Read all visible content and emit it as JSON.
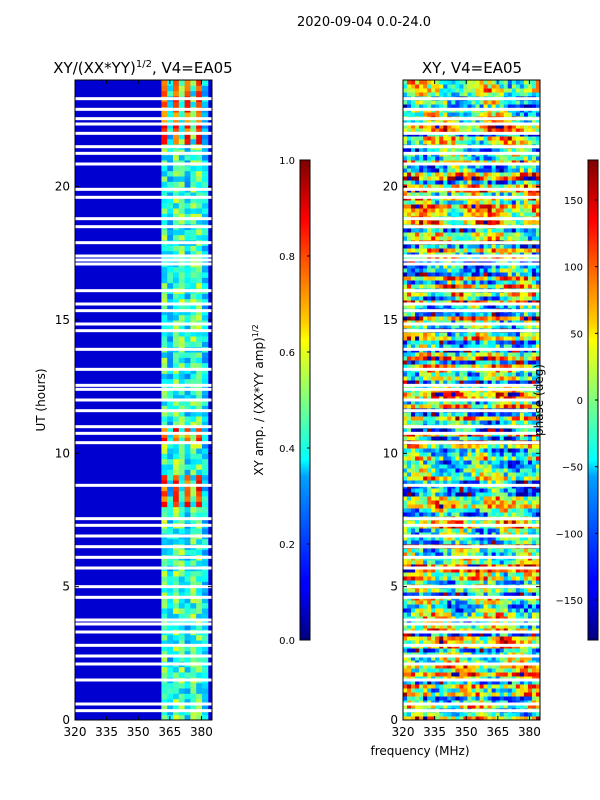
{
  "figure": {
    "suptitle": "2020-09-04 0.0-24.0",
    "xlabel_shared": "frequency (MHz)"
  },
  "chart_data": [
    {
      "type": "heatmap",
      "title": "XY/(XX*YY)",
      "title_exponent": "1/2",
      "title_suffix": ", V4=EA05",
      "xlabel": "frequency (MHz)",
      "ylabel": "UT (hours)",
      "xlim": [
        320,
        385
      ],
      "ylim": [
        0,
        24
      ],
      "xticks": [
        320,
        335,
        350,
        365,
        380
      ],
      "yticks": [
        0,
        5,
        10,
        15,
        20
      ],
      "colorbar": {
        "label": "XY amp. / (XX*YY amp)",
        "label_exponent": "1/2",
        "range": [
          0.0,
          1.0
        ],
        "ticks": [
          "0.0",
          "0.2",
          "0.4",
          "0.6",
          "0.8",
          "1.0"
        ],
        "colormap": "jet"
      },
      "description_values": {
        "background_level": 0.05,
        "band_freq_range_mhz": [
          361,
          383
        ],
        "band_level": 0.45,
        "hot_bands_level": 0.9
      }
    },
    {
      "type": "heatmap",
      "title": "XY",
      "title_exponent": "",
      "title_suffix": ", V4=EA05",
      "xlabel": "frequency (MHz)",
      "ylabel": "",
      "xlim": [
        320,
        385
      ],
      "ylim": [
        0,
        24
      ],
      "xticks": [
        320,
        335,
        350,
        365,
        380
      ],
      "yticks": [
        0,
        5,
        10,
        15,
        20
      ],
      "colorbar": {
        "label": "phase (deg)",
        "label_exponent": "",
        "range": [
          -180,
          180
        ],
        "ticks": [
          "−150",
          "−100",
          "−50",
          "0",
          "50",
          "100",
          "150"
        ],
        "tick_values": [
          -150,
          -100,
          -50,
          0,
          50,
          100,
          150
        ],
        "colormap": "jet"
      }
    }
  ],
  "colors": {
    "jet": [
      "#00007f",
      "#0000ff",
      "#007fff",
      "#00ffff",
      "#7fff7f",
      "#ffff00",
      "#ff7f00",
      "#ff0000",
      "#7f0000"
    ]
  }
}
